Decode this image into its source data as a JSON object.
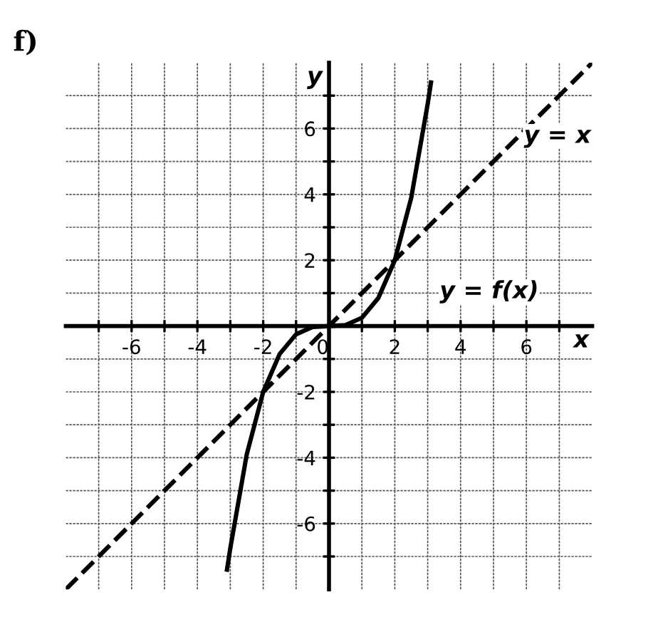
{
  "chart_data": {
    "type": "line",
    "title": "f)",
    "xlabel": "x",
    "ylabel": "y",
    "xlim": [
      -8,
      8
    ],
    "ylim": [
      -8,
      8
    ],
    "xticks": [
      {
        "value": -7,
        "label": null
      },
      -6,
      {
        "value": -5,
        "label": null
      },
      -4,
      {
        "value": -3,
        "label": null
      },
      -2,
      {
        "value": -1,
        "label": null
      },
      0,
      {
        "value": 1,
        "label": null
      },
      2,
      {
        "value": 3,
        "label": null
      },
      4,
      {
        "value": 5,
        "label": null
      },
      6,
      {
        "value": 7,
        "label": null
      }
    ],
    "yticks": [
      {
        "value": -7,
        "label": null
      },
      -6,
      {
        "value": -5,
        "label": null
      },
      -4,
      {
        "value": -3,
        "label": null
      },
      -2,
      {
        "value": -1,
        "label": null
      },
      {
        "value": 0,
        "label": null
      },
      {
        "value": 1,
        "label": null
      },
      2,
      {
        "value": 3,
        "label": null
      },
      4,
      {
        "value": 5,
        "label": null
      },
      6,
      {
        "value": 7,
        "label": null
      }
    ],
    "grid": true,
    "legend": false,
    "marker": "none",
    "series": [
      {
        "color": "#000000",
        "line_style": "solid",
        "x": [
          -3.1,
          -3,
          -2.5,
          -2,
          -1.5,
          -1,
          -0.5,
          0,
          0.5,
          1,
          1.5,
          2,
          2.5,
          3,
          3.1
        ],
        "values": [
          -7.4,
          -6.75,
          -3.9,
          -2,
          -0.85,
          -0.25,
          -0.03,
          0,
          0.03,
          0.25,
          0.85,
          2,
          3.9,
          6.75,
          7.4
        ]
      },
      {
        "color": "#000000",
        "line_style": "dashed",
        "x": [
          -8,
          8
        ],
        "values": [
          -8,
          8
        ]
      }
    ],
    "annotations": [
      "y = f(x)",
      "y = x"
    ]
  }
}
